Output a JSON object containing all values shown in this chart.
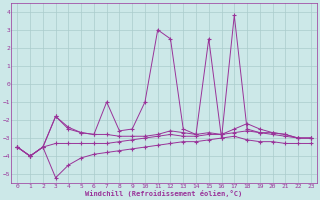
{
  "xlabel": "Windchill (Refroidissement éolien,°C)",
  "x": [
    0,
    1,
    2,
    3,
    4,
    5,
    6,
    7,
    8,
    9,
    10,
    11,
    12,
    13,
    14,
    15,
    16,
    17,
    18,
    19,
    20,
    21,
    22,
    23
  ],
  "line1": [
    -3.5,
    -4.0,
    -3.5,
    -1.8,
    -2.5,
    -2.7,
    -2.8,
    -2.8,
    -2.9,
    -2.9,
    -2.9,
    -2.8,
    -2.6,
    -2.7,
    -2.8,
    -2.7,
    -2.8,
    -2.5,
    -2.2,
    -2.5,
    -2.7,
    -2.8,
    -3.0,
    -3.0
  ],
  "line2": [
    -3.5,
    -4.0,
    -3.5,
    -3.3,
    -3.3,
    -3.3,
    -3.3,
    -3.3,
    -3.2,
    -3.1,
    -3.0,
    -2.9,
    -2.8,
    -2.9,
    -2.9,
    -2.8,
    -2.8,
    -2.7,
    -2.6,
    -2.7,
    -2.8,
    -2.9,
    -3.0,
    -3.0
  ],
  "line3": [
    -3.5,
    -4.0,
    -3.5,
    -5.2,
    -4.5,
    -4.1,
    -3.9,
    -3.8,
    -3.7,
    -3.6,
    -3.5,
    -3.4,
    -3.3,
    -3.2,
    -3.2,
    -3.1,
    -3.0,
    -2.9,
    -3.1,
    -3.2,
    -3.2,
    -3.3,
    -3.3,
    -3.3
  ],
  "line4": [
    -3.5,
    -4.0,
    -3.5,
    -1.8,
    -2.4,
    -2.7,
    -2.8,
    -1.0,
    -2.6,
    -2.5,
    -1.0,
    3.0,
    2.5,
    -2.5,
    -2.8,
    2.5,
    -3.0,
    3.8,
    -2.5,
    -2.7,
    -2.7,
    -2.8,
    -3.0,
    -3.0
  ],
  "bg_color": "#cce8e8",
  "grid_color": "#aacccc",
  "line_color": "#993399",
  "ylim": [
    -5.5,
    4.5
  ],
  "xlim": [
    -0.5,
    23.5
  ],
  "yticks": [
    -5,
    -4,
    -3,
    -2,
    -1,
    0,
    1,
    2,
    3,
    4
  ],
  "xticks": [
    0,
    1,
    2,
    3,
    4,
    5,
    6,
    7,
    8,
    9,
    10,
    11,
    12,
    13,
    14,
    15,
    16,
    17,
    18,
    19,
    20,
    21,
    22,
    23
  ]
}
